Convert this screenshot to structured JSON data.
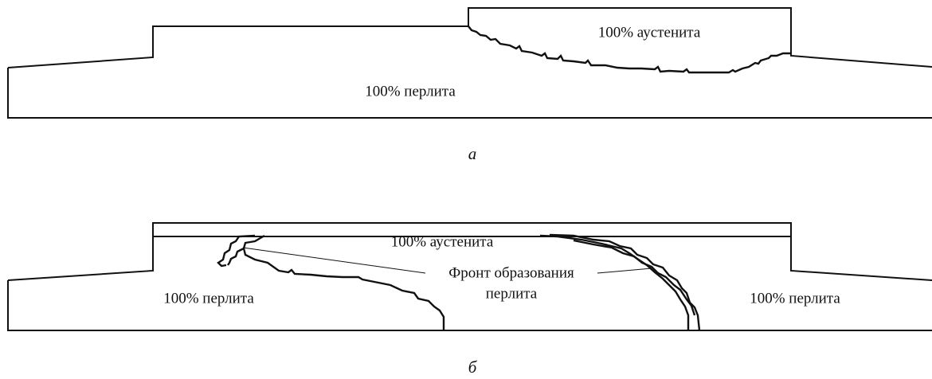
{
  "panels": [
    {
      "caption": "а",
      "labels": [
        "100% аустенита",
        "100% перлита"
      ]
    },
    {
      "caption": "б",
      "labels": [
        "100% аустенита",
        "100% перлита",
        "100% перлита"
      ],
      "annotation": [
        "Фронт образования",
        "перлита"
      ]
    }
  ]
}
